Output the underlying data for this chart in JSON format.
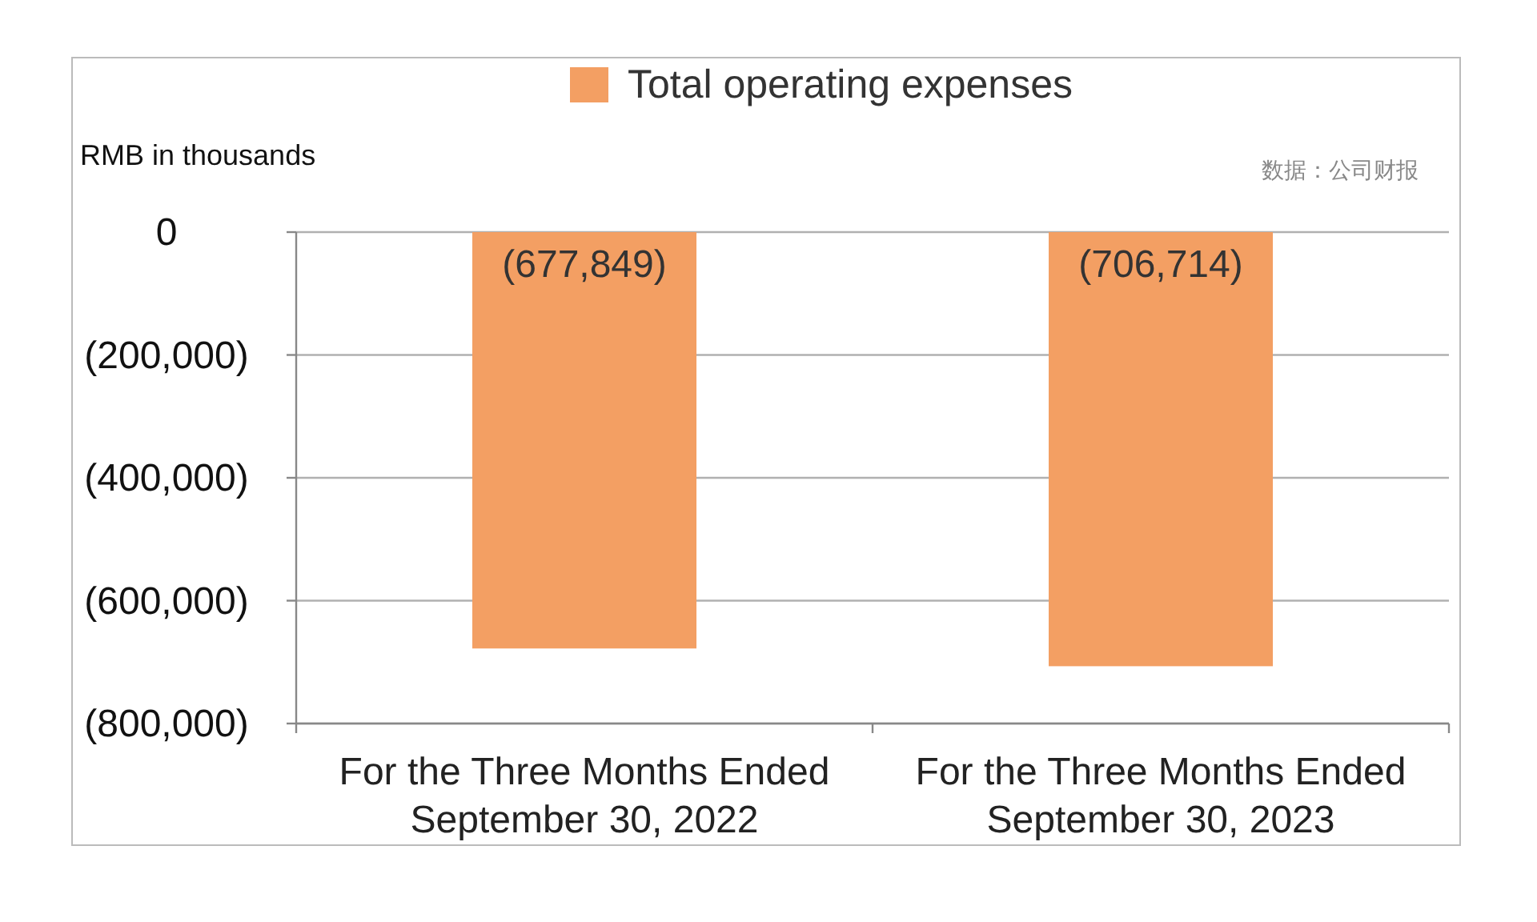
{
  "chart_data": {
    "type": "bar",
    "ylabel": "RMB in thousands",
    "categories": [
      "For the Three Months Ended September 30, 2022",
      "For the Three Months Ended September 30, 2023"
    ],
    "series": [
      {
        "name": "Total operating expenses",
        "color": "#f39f63",
        "values": [
          -677849,
          -706714
        ],
        "value_labels": [
          "(677,849)",
          "(706,714)"
        ]
      }
    ],
    "ylim": [
      -800000,
      0
    ],
    "yticks": [
      0,
      {
        "value": -200000,
        "label": "(200,000)"
      },
      {
        "value": -400000,
        "label": "(400,000)"
      },
      {
        "value": -600000,
        "label": "(600,000)"
      },
      {
        "value": -800000,
        "label": "(800,000)"
      }
    ],
    "grid": "y",
    "legend": "top",
    "annotations": [
      "数据：公司财报"
    ]
  }
}
